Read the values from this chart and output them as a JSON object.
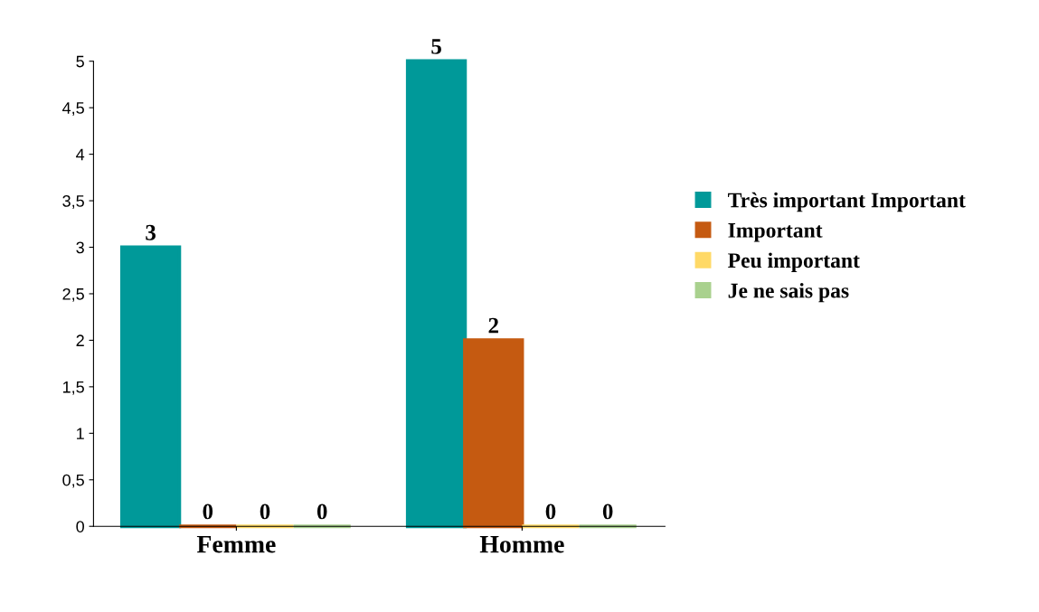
{
  "chart_data": {
    "type": "bar",
    "categories": [
      "Femme",
      "Homme"
    ],
    "series": [
      {
        "name": "Très important Important",
        "color": "#009999",
        "values": [
          3,
          5
        ]
      },
      {
        "name": "Important",
        "color": "#c55a11",
        "values": [
          0,
          2
        ]
      },
      {
        "name": "Peu important",
        "color": "#ffd966",
        "values": [
          0,
          0
        ]
      },
      {
        "name": "Je ne sais pas",
        "color": "#a9d18e",
        "values": [
          0,
          0
        ]
      }
    ],
    "ylim": [
      0,
      5
    ],
    "yticks": [
      0,
      {
        "value": 0.5,
        "label": "0,5"
      },
      1,
      {
        "value": 1.5,
        "label": "1,5"
      },
      2,
      {
        "value": 2.5,
        "label": "2,5"
      },
      3,
      {
        "value": 3.5,
        "label": "3,5"
      },
      4,
      {
        "value": 4.5,
        "label": "4,5"
      },
      5
    ],
    "data_labels": true,
    "legend": "right",
    "grid": false
  }
}
